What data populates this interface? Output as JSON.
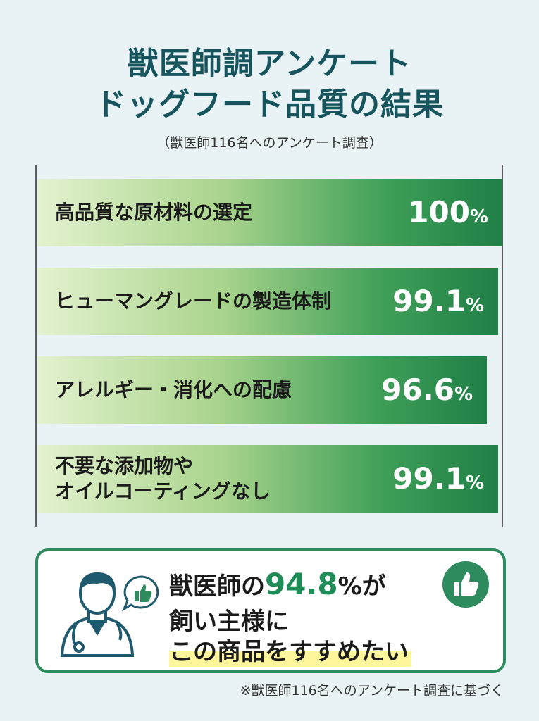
{
  "header": {
    "title_line1": "獣医師調アンケート",
    "title_line2": "ドッグフード品質の結果",
    "subtitle": "（獣医師116名へのアンケート調査）"
  },
  "chart_data": {
    "type": "bar",
    "orientation": "horizontal",
    "title": "獣医師調アンケート ドッグフード品質の結果",
    "categories": [
      "高品質な原材料の選定",
      "ヒューマングレードの製造体制",
      "アレルギー・消化への配慮",
      "不要な添加物や\nオイルコーティングなし"
    ],
    "values": [
      100,
      99.1,
      96.6,
      99.1
    ],
    "value_labels": [
      "100",
      "99.1",
      "96.6",
      "99.1"
    ],
    "unit": "%",
    "xlim": [
      0,
      100
    ],
    "grid": false,
    "colors": {
      "bar_start": "#e4f2cf",
      "bar_end": "#1f7f46",
      "value_text": "#ffffff"
    }
  },
  "callout": {
    "line1_prefix": "獣医師の",
    "line1_pct": "94.8",
    "line1_suffix": "%が",
    "line2": "飼い主様に",
    "line3": "この商品をすすめたい",
    "icons": [
      "doctor-icon",
      "thumbs-up-icon"
    ],
    "accent_color": "#2e8b5e"
  },
  "footnote": "※獣医師116名へのアンケート調査に基づく"
}
